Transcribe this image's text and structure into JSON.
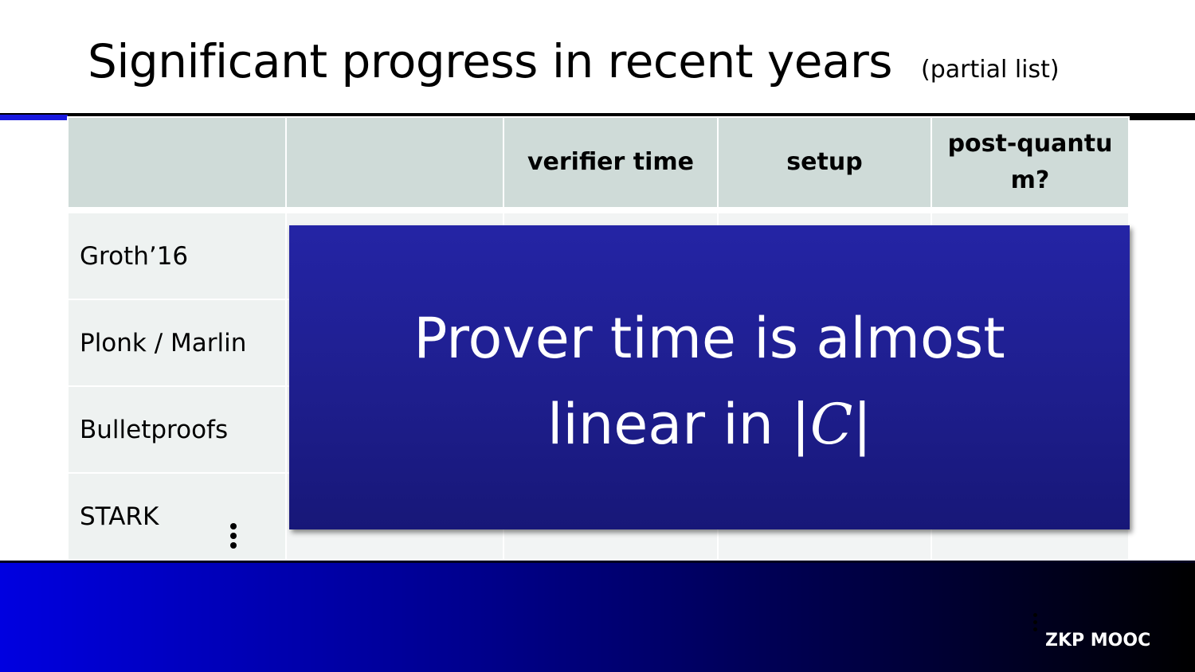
{
  "slide": {
    "title": "Significant progress in recent years",
    "subtitle": "(partial list)"
  },
  "table": {
    "headers": [
      "",
      "",
      "verifier time",
      "setup",
      "post-quantu m?"
    ],
    "rows": [
      {
        "name": "Groth’16"
      },
      {
        "name": "Plonk / Marlin"
      },
      {
        "name": "Bulletproofs"
      },
      {
        "name": "STARK"
      }
    ]
  },
  "overlay": {
    "line1": "Prover time is almost",
    "line2_prefix": "linear in |",
    "line2_math": "C",
    "line2_suffix": "|"
  },
  "footer": {
    "label": "ZKP MOOC"
  },
  "colors": {
    "header_fill": "#cfdbd8",
    "overlay_fill": "#1e1e8d",
    "footer_gradient_start": "#0000e0",
    "footer_gradient_end": "#000000"
  }
}
